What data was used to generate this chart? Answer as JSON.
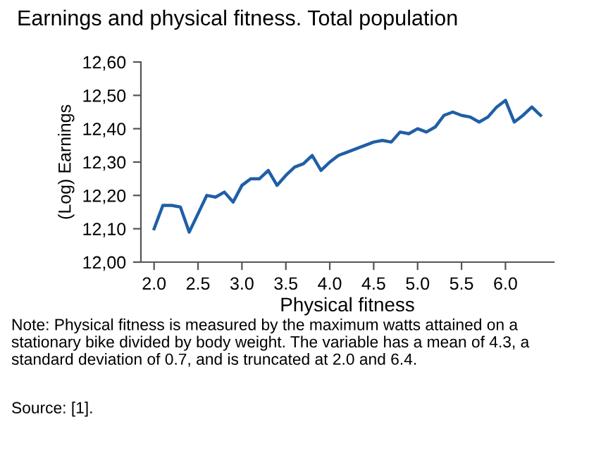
{
  "chart_data": {
    "type": "line",
    "title": "Earnings and physical fitness. Total population",
    "xlabel": "Physical fitness",
    "ylabel": "(Log) Earnings",
    "x": [
      2.0,
      2.1,
      2.2,
      2.3,
      2.4,
      2.5,
      2.6,
      2.7,
      2.8,
      2.9,
      3.0,
      3.1,
      3.2,
      3.3,
      3.4,
      3.5,
      3.6,
      3.7,
      3.8,
      3.9,
      4.0,
      4.1,
      4.2,
      4.3,
      4.4,
      4.5,
      4.6,
      4.7,
      4.8,
      4.9,
      5.0,
      5.1,
      5.2,
      5.3,
      5.4,
      5.5,
      5.6,
      5.7,
      5.8,
      5.9,
      6.0,
      6.1,
      6.2,
      6.3,
      6.4
    ],
    "series": [
      {
        "color": "#1f5fa6",
        "values": [
          12.1,
          12.17,
          12.17,
          12.165,
          12.09,
          12.145,
          12.2,
          12.195,
          12.21,
          12.18,
          12.23,
          12.25,
          12.25,
          12.275,
          12.23,
          12.26,
          12.285,
          12.295,
          12.32,
          12.275,
          12.3,
          12.32,
          12.33,
          12.34,
          12.35,
          12.36,
          12.365,
          12.36,
          12.39,
          12.385,
          12.4,
          12.39,
          12.405,
          12.44,
          12.45,
          12.44,
          12.435,
          12.42,
          12.435,
          12.465,
          12.485,
          12.42,
          12.44,
          12.465,
          12.44
        ]
      }
    ],
    "xlim": [
      1.85,
      6.55
    ],
    "xticks": [
      {
        "value": 2.0,
        "label": "2.0"
      },
      2.5,
      {
        "value": 3.0,
        "label": "3.0"
      },
      3.5,
      {
        "value": 4.0,
        "label": "4.0"
      },
      4.5,
      {
        "value": 5.0,
        "label": "5.0"
      },
      5.5,
      {
        "value": 6.0,
        "label": "6.0"
      }
    ],
    "ylim": [
      12.0,
      12.6
    ],
    "yticks": [
      {
        "value": 12.0,
        "label": "12,00"
      },
      {
        "value": 12.1,
        "label": "12,10"
      },
      {
        "value": 12.2,
        "label": "12,20"
      },
      {
        "value": 12.3,
        "label": "12,30"
      },
      {
        "value": 12.4,
        "label": "12,40"
      },
      {
        "value": 12.5,
        "label": "12,50"
      },
      {
        "value": 12.6,
        "label": "12,60"
      }
    ],
    "grid": false,
    "legend": false,
    "marker": "none",
    "line_style": "solid",
    "annotations": [
      "Note: Physical fitness is measured by the maximum watts attained on a stationary bike divided by body weight. The variable has a mean of 4.3, a standard deviation of 0.7, and is truncated at 2.0 and 6.4.",
      "Source: [1]."
    ]
  }
}
